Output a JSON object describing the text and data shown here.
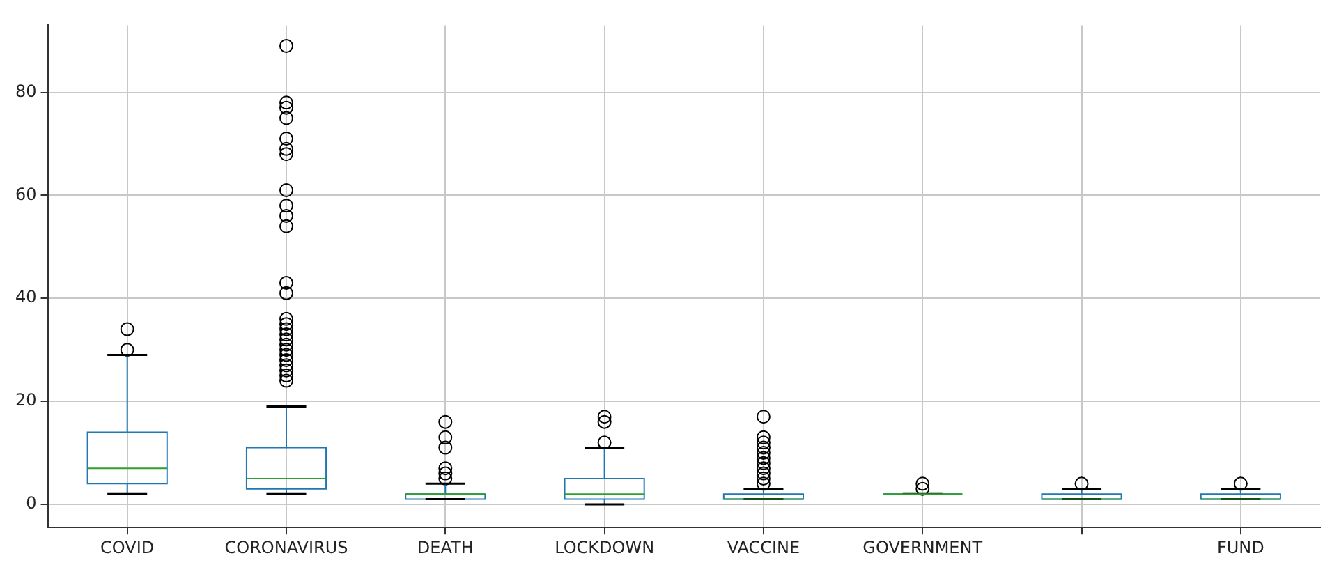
{
  "chart_data": {
    "type": "box",
    "categories": [
      "COVID",
      "CORONAVIRUS",
      "DEATH",
      "LOCKDOWN",
      "VACCINE",
      "GOVERNMENT",
      null,
      "FUND"
    ],
    "ylim": [
      -4.5,
      93
    ],
    "yticks": [
      0,
      20,
      40,
      60,
      80
    ],
    "grid": true,
    "series": [
      {
        "color": "#1f77b4",
        "boxes": [
          {
            "low": 2,
            "q1": 4,
            "median": 7,
            "q3": 14,
            "high": 29,
            "outliers": [
              30,
              34
            ]
          },
          {
            "low": 2,
            "q1": 3,
            "median": 5,
            "q3": 11,
            "high": 19,
            "outliers": [
              24,
              25,
              26,
              27,
              28,
              29,
              30,
              31,
              32,
              33,
              34,
              35,
              36,
              41,
              43,
              54,
              56,
              58,
              61,
              68,
              69,
              71,
              75,
              77,
              78,
              89
            ]
          },
          {
            "low": 1,
            "q1": 1,
            "median": 2,
            "q3": 2,
            "high": 4,
            "outliers": [
              5,
              6,
              7,
              11,
              13,
              16
            ]
          },
          {
            "low": 0,
            "q1": 1,
            "median": 2,
            "q3": 5,
            "high": 11,
            "outliers": [
              12,
              16,
              17
            ]
          },
          {
            "low": 1,
            "q1": 1,
            "median": 1,
            "q3": 2,
            "high": 3,
            "outliers": [
              4,
              5,
              6,
              7,
              8,
              9,
              10,
              11,
              12,
              13,
              17
            ]
          },
          {
            "low": 2,
            "q1": 2,
            "median": 2,
            "q3": 2,
            "high": 2,
            "outliers": [
              3,
              4
            ]
          },
          {
            "low": 1,
            "q1": 1,
            "median": 1,
            "q3": 2,
            "high": 3,
            "outliers": [
              4
            ]
          },
          {
            "low": 1,
            "q1": 1,
            "median": 1,
            "q3": 2,
            "high": 3,
            "outliers": [
              4
            ]
          }
        ]
      }
    ]
  }
}
